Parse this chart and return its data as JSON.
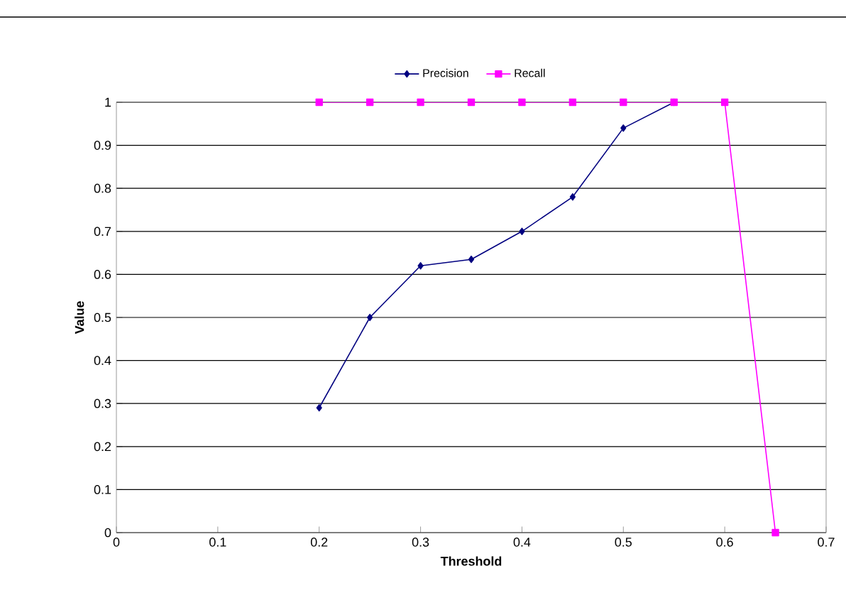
{
  "chart_data": {
    "type": "line",
    "xlabel": "Threshold",
    "ylabel": "Value",
    "xlim": [
      0,
      0.7
    ],
    "xticks": [
      0,
      0.1,
      0.2,
      0.3,
      0.4,
      0.5,
      0.6,
      0.7
    ],
    "ylim": [
      0,
      1
    ],
    "yticks": [
      0,
      0.1,
      0.2,
      0.3,
      0.4,
      0.5,
      0.6,
      0.7,
      0.8,
      0.9,
      1
    ],
    "grid": "y",
    "legend": "top",
    "series": [
      {
        "name": "Precision",
        "color": "#000080",
        "marker": "diamond",
        "x": [
          0.2,
          0.25,
          0.3,
          0.35,
          0.4,
          0.45,
          0.5,
          0.55
        ],
        "values": [
          0.29,
          0.5,
          0.62,
          0.635,
          0.7,
          0.78,
          0.94,
          1.0
        ]
      },
      {
        "name": "Recall",
        "color": "#ff00ff",
        "marker": "square",
        "x": [
          0.2,
          0.25,
          0.3,
          0.35,
          0.4,
          0.45,
          0.5,
          0.55,
          0.6,
          0.65
        ],
        "values": [
          1,
          1,
          1,
          1,
          1,
          1,
          1,
          1,
          1,
          0
        ]
      }
    ]
  }
}
